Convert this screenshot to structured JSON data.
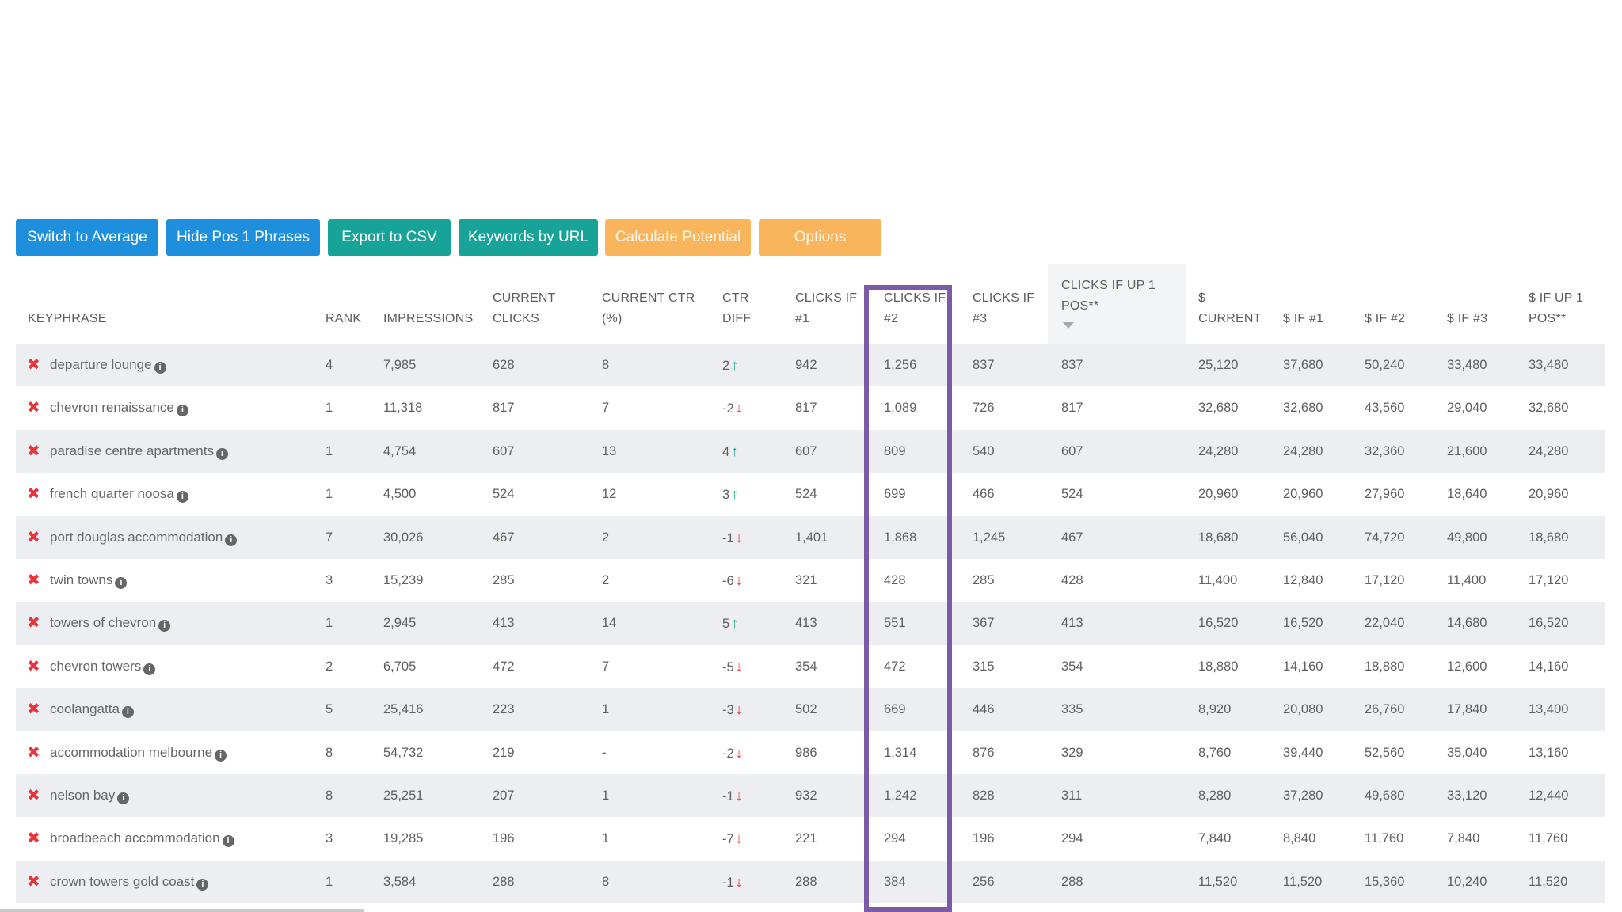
{
  "toolbar": {
    "buttons": [
      {
        "label": "Switch to Average",
        "style": "blue"
      },
      {
        "label": "Hide Pos 1 Phrases",
        "style": "blue"
      },
      {
        "label": "Export to CSV",
        "style": "teal"
      },
      {
        "label": "Keywords by URL",
        "style": "teal"
      },
      {
        "label": "Calculate Potential",
        "style": "orange"
      },
      {
        "label": "Options",
        "style": "orange"
      }
    ]
  },
  "table": {
    "columns": [
      {
        "line1": "",
        "line2": "KEYPHRASE"
      },
      {
        "line1": "",
        "line2": "RANK"
      },
      {
        "line1": "",
        "line2": "IMPRESSIONS"
      },
      {
        "line1": "CURRENT",
        "line2": "CLICKS"
      },
      {
        "line1": "CURRENT CTR",
        "line2": "(%)"
      },
      {
        "line1": "CTR",
        "line2": "DIFF"
      },
      {
        "line1": "CLICKS IF",
        "line2": "#1"
      },
      {
        "line1": "CLICKS IF",
        "line2": "#2"
      },
      {
        "line1": "CLICKS IF",
        "line2": "#3"
      },
      {
        "line1": "CLICKS IF UP 1",
        "line2": "POS**"
      },
      {
        "line1": "$",
        "line2": "CURRENT"
      },
      {
        "line1": "",
        "line2": "$ IF #1"
      },
      {
        "line1": "",
        "line2": "$ IF #2"
      },
      {
        "line1": "",
        "line2": "$ IF #3"
      },
      {
        "line1": "$ IF UP 1",
        "line2": "POS**"
      }
    ],
    "rows": [
      {
        "keyphrase": "departure lounge",
        "rank": "4",
        "impressions": "7,985",
        "current_clicks": "628",
        "current_ctr": "8",
        "ctr_diff": "2",
        "ctr_dir": "up",
        "clicks_if_1": "942",
        "clicks_if_2": "1,256",
        "clicks_if_3": "837",
        "clicks_if_up1": "837",
        "d_current": "25,120",
        "d_if_1": "37,680",
        "d_if_2": "50,240",
        "d_if_3": "33,480",
        "d_if_up1": "33,480"
      },
      {
        "keyphrase": "chevron renaissance",
        "rank": "1",
        "impressions": "11,318",
        "current_clicks": "817",
        "current_ctr": "7",
        "ctr_diff": "-2",
        "ctr_dir": "down",
        "clicks_if_1": "817",
        "clicks_if_2": "1,089",
        "clicks_if_3": "726",
        "clicks_if_up1": "817",
        "d_current": "32,680",
        "d_if_1": "32,680",
        "d_if_2": "43,560",
        "d_if_3": "29,040",
        "d_if_up1": "32,680"
      },
      {
        "keyphrase": "paradise centre apartments",
        "rank": "1",
        "impressions": "4,754",
        "current_clicks": "607",
        "current_ctr": "13",
        "ctr_diff": "4",
        "ctr_dir": "up",
        "clicks_if_1": "607",
        "clicks_if_2": "809",
        "clicks_if_3": "540",
        "clicks_if_up1": "607",
        "d_current": "24,280",
        "d_if_1": "24,280",
        "d_if_2": "32,360",
        "d_if_3": "21,600",
        "d_if_up1": "24,280"
      },
      {
        "keyphrase": "french quarter noosa",
        "rank": "1",
        "impressions": "4,500",
        "current_clicks": "524",
        "current_ctr": "12",
        "ctr_diff": "3",
        "ctr_dir": "up",
        "clicks_if_1": "524",
        "clicks_if_2": "699",
        "clicks_if_3": "466",
        "clicks_if_up1": "524",
        "d_current": "20,960",
        "d_if_1": "20,960",
        "d_if_2": "27,960",
        "d_if_3": "18,640",
        "d_if_up1": "20,960"
      },
      {
        "keyphrase": "port douglas accommodation",
        "rank": "7",
        "impressions": "30,026",
        "current_clicks": "467",
        "current_ctr": "2",
        "ctr_diff": "-1",
        "ctr_dir": "down",
        "clicks_if_1": "1,401",
        "clicks_if_2": "1,868",
        "clicks_if_3": "1,245",
        "clicks_if_up1": "467",
        "d_current": "18,680",
        "d_if_1": "56,040",
        "d_if_2": "74,720",
        "d_if_3": "49,800",
        "d_if_up1": "18,680"
      },
      {
        "keyphrase": "twin towns",
        "rank": "3",
        "impressions": "15,239",
        "current_clicks": "285",
        "current_ctr": "2",
        "ctr_diff": "-6",
        "ctr_dir": "down",
        "clicks_if_1": "321",
        "clicks_if_2": "428",
        "clicks_if_3": "285",
        "clicks_if_up1": "428",
        "d_current": "11,400",
        "d_if_1": "12,840",
        "d_if_2": "17,120",
        "d_if_3": "11,400",
        "d_if_up1": "17,120"
      },
      {
        "keyphrase": "towers of chevron",
        "rank": "1",
        "impressions": "2,945",
        "current_clicks": "413",
        "current_ctr": "14",
        "ctr_diff": "5",
        "ctr_dir": "up",
        "clicks_if_1": "413",
        "clicks_if_2": "551",
        "clicks_if_3": "367",
        "clicks_if_up1": "413",
        "d_current": "16,520",
        "d_if_1": "16,520",
        "d_if_2": "22,040",
        "d_if_3": "14,680",
        "d_if_up1": "16,520"
      },
      {
        "keyphrase": "chevron towers",
        "rank": "2",
        "impressions": "6,705",
        "current_clicks": "472",
        "current_ctr": "7",
        "ctr_diff": "-5",
        "ctr_dir": "down",
        "clicks_if_1": "354",
        "clicks_if_2": "472",
        "clicks_if_3": "315",
        "clicks_if_up1": "354",
        "d_current": "18,880",
        "d_if_1": "14,160",
        "d_if_2": "18,880",
        "d_if_3": "12,600",
        "d_if_up1": "14,160"
      },
      {
        "keyphrase": "coolangatta",
        "rank": "5",
        "impressions": "25,416",
        "current_clicks": "223",
        "current_ctr": "1",
        "ctr_diff": "-3",
        "ctr_dir": "down",
        "clicks_if_1": "502",
        "clicks_if_2": "669",
        "clicks_if_3": "446",
        "clicks_if_up1": "335",
        "d_current": "8,920",
        "d_if_1": "20,080",
        "d_if_2": "26,760",
        "d_if_3": "17,840",
        "d_if_up1": "13,400"
      },
      {
        "keyphrase": "accommodation melbourne",
        "rank": "8",
        "impressions": "54,732",
        "current_clicks": "219",
        "current_ctr": "-",
        "ctr_diff": "-2",
        "ctr_dir": "down",
        "clicks_if_1": "986",
        "clicks_if_2": "1,314",
        "clicks_if_3": "876",
        "clicks_if_up1": "329",
        "d_current": "8,760",
        "d_if_1": "39,440",
        "d_if_2": "52,560",
        "d_if_3": "35,040",
        "d_if_up1": "13,160"
      },
      {
        "keyphrase": "nelson bay",
        "rank": "8",
        "impressions": "25,251",
        "current_clicks": "207",
        "current_ctr": "1",
        "ctr_diff": "-1",
        "ctr_dir": "down",
        "clicks_if_1": "932",
        "clicks_if_2": "1,242",
        "clicks_if_3": "828",
        "clicks_if_up1": "311",
        "d_current": "8,280",
        "d_if_1": "37,280",
        "d_if_2": "49,680",
        "d_if_3": "33,120",
        "d_if_up1": "12,440"
      },
      {
        "keyphrase": "broadbeach accommodation",
        "rank": "3",
        "impressions": "19,285",
        "current_clicks": "196",
        "current_ctr": "1",
        "ctr_diff": "-7",
        "ctr_dir": "down",
        "clicks_if_1": "221",
        "clicks_if_2": "294",
        "clicks_if_3": "196",
        "clicks_if_up1": "294",
        "d_current": "7,840",
        "d_if_1": "8,840",
        "d_if_2": "11,760",
        "d_if_3": "7,840",
        "d_if_up1": "11,760"
      },
      {
        "keyphrase": "crown towers gold coast",
        "rank": "1",
        "impressions": "3,584",
        "current_clicks": "288",
        "current_ctr": "8",
        "ctr_diff": "-1",
        "ctr_dir": "down",
        "clicks_if_1": "288",
        "clicks_if_2": "384",
        "clicks_if_3": "256",
        "clicks_if_up1": "288",
        "d_current": "11,520",
        "d_if_1": "11,520",
        "d_if_2": "15,360",
        "d_if_3": "10,240",
        "d_if_up1": "11,520"
      }
    ]
  },
  "icons": {
    "remove": "remove-x-icon",
    "info": "info-circle-icon",
    "up": "arrow-up-icon",
    "down": "arrow-down-icon",
    "sort": "sort-caret-down-icon"
  },
  "colors": {
    "blue_button": "#1d8fdc",
    "teal_button": "#17a398",
    "orange_button": "#f8b55b",
    "highlight": "#7b5aa6",
    "up": "#1aa38f",
    "down": "#e2323b",
    "remove": "#e5363d"
  }
}
